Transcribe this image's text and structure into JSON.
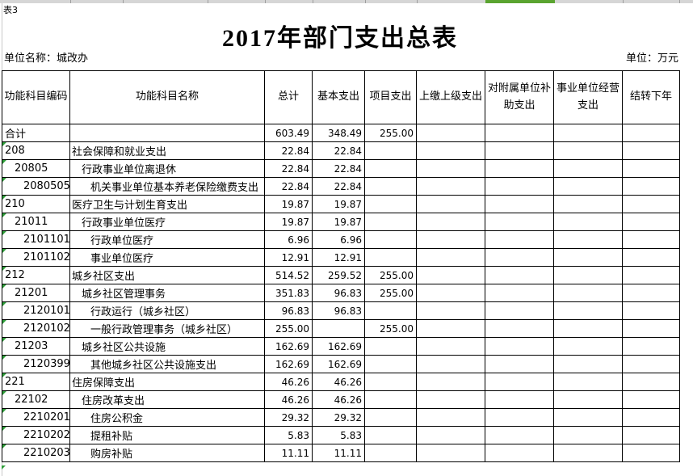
{
  "sheet": {
    "label": "表3"
  },
  "title": "2017年部门支出总表",
  "meta": {
    "unit_name": "单位名称：城改办",
    "unit": "单位：万元"
  },
  "colors": {
    "selected_column_green": "#5aa430",
    "indicator_green": "#2f9e3a"
  },
  "table": {
    "columns": [
      {
        "key": "code",
        "label": "功能科目编码"
      },
      {
        "key": "name",
        "label": "功能科目名称"
      },
      {
        "key": "total",
        "label": "总计"
      },
      {
        "key": "basic",
        "label": "基本支出"
      },
      {
        "key": "project",
        "label": "项目支出"
      },
      {
        "key": "upper",
        "label": "上缴上级支出"
      },
      {
        "key": "affiliate",
        "label": "对附属单位补助支出"
      },
      {
        "key": "business",
        "label": "事业单位经营支出"
      },
      {
        "key": "carryover",
        "label": "结转下年"
      }
    ],
    "rows": [
      {
        "code": "合计",
        "name": "",
        "level": 0,
        "indicator": false,
        "total": "603.49",
        "basic": "348.49",
        "project": "255.00",
        "upper": "",
        "affiliate": "",
        "business": "",
        "carryover": ""
      },
      {
        "code": "208",
        "name": "社会保障和就业支出",
        "level": 0,
        "indicator": true,
        "total": "22.84",
        "basic": "22.84",
        "project": "",
        "upper": "",
        "affiliate": "",
        "business": "",
        "carryover": ""
      },
      {
        "code": "20805",
        "name": "行政事业单位离退休",
        "level": 1,
        "indicator": true,
        "total": "22.84",
        "basic": "22.84",
        "project": "",
        "upper": "",
        "affiliate": "",
        "business": "",
        "carryover": ""
      },
      {
        "code": "2080505",
        "name": "机关事业单位基本养老保险缴费支出",
        "level": 2,
        "indicator": true,
        "total": "22.84",
        "basic": "22.84",
        "project": "",
        "upper": "",
        "affiliate": "",
        "business": "",
        "carryover": ""
      },
      {
        "code": "210",
        "name": "医疗卫生与计划生育支出",
        "level": 0,
        "indicator": true,
        "total": "19.87",
        "basic": "19.87",
        "project": "",
        "upper": "",
        "affiliate": "",
        "business": "",
        "carryover": ""
      },
      {
        "code": "21011",
        "name": "行政事业单位医疗",
        "level": 1,
        "indicator": true,
        "total": "19.87",
        "basic": "19.87",
        "project": "",
        "upper": "",
        "affiliate": "",
        "business": "",
        "carryover": ""
      },
      {
        "code": "2101101",
        "name": "行政单位医疗",
        "level": 2,
        "indicator": true,
        "total": "6.96",
        "basic": "6.96",
        "project": "",
        "upper": "",
        "affiliate": "",
        "business": "",
        "carryover": ""
      },
      {
        "code": "2101102",
        "name": "事业单位医疗",
        "level": 2,
        "indicator": true,
        "total": "12.91",
        "basic": "12.91",
        "project": "",
        "upper": "",
        "affiliate": "",
        "business": "",
        "carryover": ""
      },
      {
        "code": "212",
        "name": "城乡社区支出",
        "level": 0,
        "indicator": true,
        "total": "514.52",
        "basic": "259.52",
        "project": "255.00",
        "upper": "",
        "affiliate": "",
        "business": "",
        "carryover": ""
      },
      {
        "code": "21201",
        "name": "城乡社区管理事务",
        "level": 1,
        "indicator": true,
        "total": "351.83",
        "basic": "96.83",
        "project": "255.00",
        "upper": "",
        "affiliate": "",
        "business": "",
        "carryover": ""
      },
      {
        "code": "2120101",
        "name": "行政运行（城乡社区）",
        "level": 2,
        "indicator": true,
        "total": "96.83",
        "basic": "96.83",
        "project": "",
        "upper": "",
        "affiliate": "",
        "business": "",
        "carryover": ""
      },
      {
        "code": "2120102",
        "name": "一般行政管理事务（城乡社区）",
        "level": 2,
        "indicator": true,
        "total": "255.00",
        "basic": "",
        "project": "255.00",
        "upper": "",
        "affiliate": "",
        "business": "",
        "carryover": ""
      },
      {
        "code": "21203",
        "name": "城乡社区公共设施",
        "level": 1,
        "indicator": true,
        "total": "162.69",
        "basic": "162.69",
        "project": "",
        "upper": "",
        "affiliate": "",
        "business": "",
        "carryover": ""
      },
      {
        "code": "2120399",
        "name": "其他城乡社区公共设施支出",
        "level": 2,
        "indicator": true,
        "total": "162.69",
        "basic": "162.69",
        "project": "",
        "upper": "",
        "affiliate": "",
        "business": "",
        "carryover": ""
      },
      {
        "code": "221",
        "name": "住房保障支出",
        "level": 0,
        "indicator": true,
        "total": "46.26",
        "basic": "46.26",
        "project": "",
        "upper": "",
        "affiliate": "",
        "business": "",
        "carryover": ""
      },
      {
        "code": "22102",
        "name": "住房改革支出",
        "level": 1,
        "indicator": true,
        "total": "46.26",
        "basic": "46.26",
        "project": "",
        "upper": "",
        "affiliate": "",
        "business": "",
        "carryover": ""
      },
      {
        "code": "2210201",
        "name": "住房公积金",
        "level": 2,
        "indicator": true,
        "total": "29.32",
        "basic": "29.32",
        "project": "",
        "upper": "",
        "affiliate": "",
        "business": "",
        "carryover": ""
      },
      {
        "code": "2210202",
        "name": "提租补贴",
        "level": 2,
        "indicator": true,
        "total": "5.83",
        "basic": "5.83",
        "project": "",
        "upper": "",
        "affiliate": "",
        "business": "",
        "carryover": ""
      },
      {
        "code": "2210203",
        "name": "购房补贴",
        "level": 2,
        "indicator": true,
        "total": "11.11",
        "basic": "11.11",
        "project": "",
        "upper": "",
        "affiliate": "",
        "business": "",
        "carryover": ""
      }
    ]
  }
}
